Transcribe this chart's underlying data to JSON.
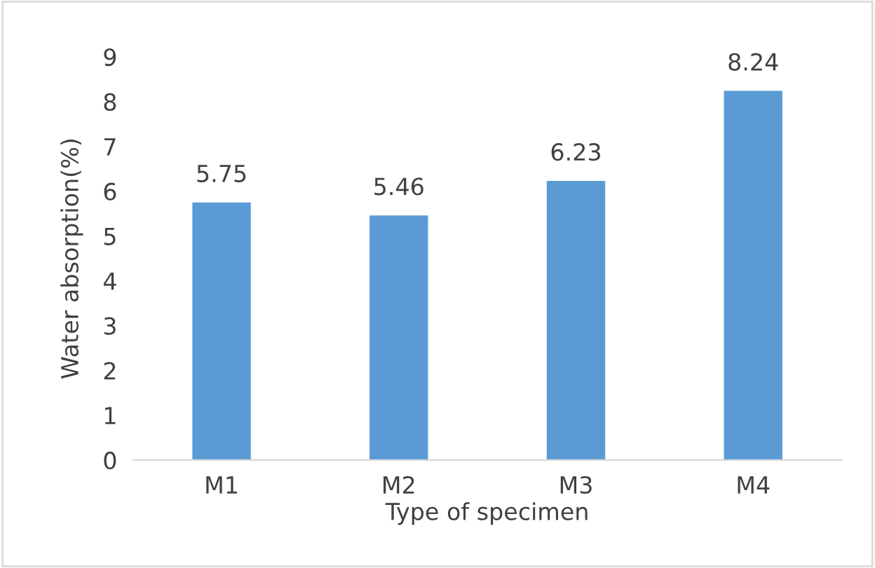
{
  "chart_data": {
    "type": "bar",
    "xlabel": "Type of specimen",
    "ylabel": "Water absorption(%)",
    "categories": [
      "M1",
      "M2",
      "M3",
      "M4"
    ],
    "values": [
      5.75,
      5.46,
      6.23,
      8.24
    ],
    "color": "#5b9bd5",
    "ylim": [
      0,
      9
    ],
    "yticks": [
      0,
      1,
      2,
      3,
      4,
      5,
      6,
      7,
      8,
      9
    ],
    "grid": false,
    "legend": false,
    "data_labels": true
  }
}
